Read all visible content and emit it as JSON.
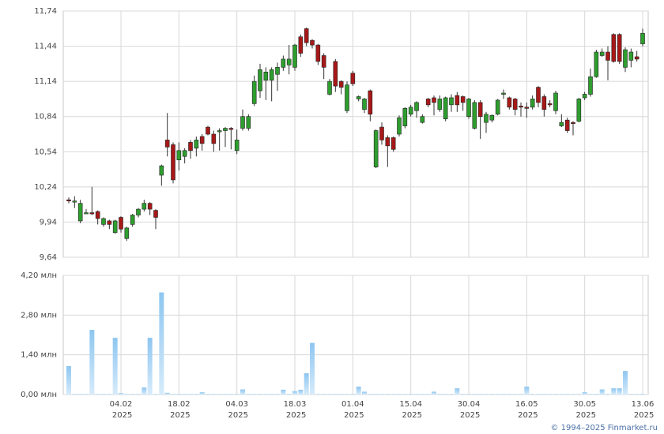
{
  "chart_data": [
    {
      "type": "candlestick",
      "up_color": "#2e9e2e",
      "down_color": "#a81818",
      "ylim": [
        9.64,
        11.74
      ],
      "yticks": [
        {
          "value": 9.64,
          "label": "9,64"
        },
        {
          "value": 9.94,
          "label": "9,94"
        },
        {
          "value": 10.24,
          "label": "10,24"
        },
        {
          "value": 10.54,
          "label": "10,54"
        },
        {
          "value": 10.84,
          "label": "10,84"
        },
        {
          "value": 11.14,
          "label": "11,14"
        },
        {
          "value": 11.44,
          "label": "11,44"
        },
        {
          "value": 11.74,
          "label": "11,74"
        }
      ],
      "grid": true,
      "open": [
        10.13,
        10.11,
        9.95,
        10.02,
        10.02,
        10.03,
        9.92,
        9.95,
        9.85,
        9.98,
        9.8,
        9.92,
        10.0,
        10.05,
        10.1,
        10.04,
        10.34,
        10.64,
        10.6,
        10.47,
        10.5,
        10.62,
        10.57,
        10.67,
        10.75,
        10.69,
        10.71,
        10.72,
        10.74,
        10.55,
        10.74,
        10.74,
        10.95,
        11.06,
        11.15,
        11.15,
        11.2,
        11.26,
        11.28,
        11.26,
        11.52,
        11.59,
        11.49,
        11.45,
        11.36,
        11.03,
        11.31,
        11.14,
        10.89,
        11.21,
        10.99,
        10.9,
        11.06,
        10.41,
        10.75,
        10.66,
        10.66,
        10.69,
        10.76,
        10.86,
        10.89,
        10.79,
        10.99,
        11.0,
        10.9,
        10.82,
        10.94,
        11.02,
        11.01,
        10.84,
        10.74,
        10.96,
        10.79,
        10.81,
        10.86,
        11.03,
        11.0,
        10.99,
        10.93,
        10.92,
        10.92,
        11.09,
        11.01,
        10.95,
        10.89,
        10.76,
        10.81,
        10.79,
        10.8,
        11.0,
        11.03,
        11.18,
        11.36,
        11.39,
        11.54,
        11.54,
        11.26,
        11.32,
        11.35,
        11.46
      ],
      "high": [
        10.15,
        10.16,
        10.13,
        10.05,
        10.24,
        10.04,
        9.98,
        9.96,
        9.96,
        9.99,
        9.9,
        10.01,
        10.06,
        10.13,
        10.11,
        10.05,
        10.43,
        10.87,
        10.62,
        10.62,
        10.57,
        10.64,
        10.67,
        10.69,
        10.76,
        10.72,
        10.74,
        10.75,
        10.75,
        10.73,
        10.9,
        10.86,
        11.19,
        11.29,
        11.26,
        11.26,
        11.3,
        11.36,
        11.45,
        11.46,
        11.54,
        11.6,
        11.5,
        11.46,
        11.38,
        11.16,
        11.33,
        11.15,
        11.14,
        11.23,
        11.02,
        11.0,
        11.07,
        10.73,
        10.79,
        10.68,
        10.67,
        10.85,
        10.92,
        10.94,
        10.97,
        10.86,
        11.0,
        11.02,
        11.02,
        11.01,
        11.03,
        11.05,
        11.02,
        11.0,
        10.98,
        10.98,
        10.88,
        10.86,
        10.99,
        11.07,
        11.01,
        11.0,
        10.96,
        10.96,
        11.02,
        11.1,
        11.03,
        10.98,
        11.06,
        10.86,
        10.83,
        10.8,
        11.0,
        11.05,
        11.25,
        11.41,
        11.42,
        11.44,
        11.55,
        11.55,
        11.43,
        11.42,
        11.4,
        11.59
      ],
      "low": [
        10.1,
        10.06,
        9.93,
        10.01,
        10.0,
        9.92,
        9.9,
        9.88,
        9.84,
        9.85,
        9.78,
        9.9,
        9.98,
        10.03,
        10.0,
        9.88,
        10.25,
        10.5,
        10.27,
        10.38,
        10.44,
        10.48,
        10.5,
        10.55,
        10.68,
        10.54,
        10.55,
        10.58,
        10.56,
        10.52,
        10.72,
        10.72,
        10.93,
        11.0,
        10.98,
        10.97,
        11.06,
        11.23,
        11.2,
        11.23,
        11.35,
        11.44,
        11.42,
        11.28,
        11.16,
        11.02,
        11.05,
        11.03,
        10.87,
        11.1,
        10.97,
        10.87,
        10.8,
        10.4,
        10.6,
        10.41,
        10.54,
        10.67,
        10.74,
        10.84,
        10.83,
        10.78,
        10.92,
        10.85,
        10.88,
        10.8,
        10.88,
        10.88,
        10.89,
        10.82,
        10.73,
        10.65,
        10.7,
        10.79,
        10.85,
        10.99,
        10.9,
        10.85,
        10.84,
        10.83,
        10.9,
        10.92,
        10.84,
        10.92,
        10.86,
        10.75,
        10.7,
        10.68,
        10.79,
        10.98,
        11.01,
        11.17,
        11.35,
        11.15,
        11.3,
        11.29,
        11.22,
        11.26,
        11.31,
        11.44
      ],
      "close": [
        10.12,
        10.12,
        10.1,
        10.02,
        10.01,
        9.97,
        9.97,
        9.92,
        9.95,
        9.88,
        9.89,
        10.0,
        10.05,
        10.1,
        10.05,
        9.98,
        10.42,
        10.58,
        10.3,
        10.55,
        10.55,
        10.55,
        10.64,
        10.61,
        10.69,
        10.61,
        10.72,
        10.74,
        10.73,
        10.64,
        10.84,
        10.84,
        11.14,
        11.24,
        11.22,
        11.24,
        11.26,
        11.33,
        11.33,
        11.45,
        11.38,
        11.47,
        11.45,
        11.31,
        11.26,
        11.14,
        11.1,
        11.09,
        11.11,
        11.12,
        11.01,
        10.99,
        10.86,
        10.72,
        10.64,
        10.59,
        10.56,
        10.83,
        10.91,
        10.92,
        10.96,
        10.84,
        10.94,
        10.96,
        10.99,
        11.0,
        11.0,
        10.94,
        10.96,
        10.99,
        10.96,
        10.84,
        10.86,
        10.85,
        10.98,
        11.04,
        10.92,
        10.9,
        10.92,
        10.91,
        10.99,
        10.96,
        10.9,
        10.94,
        11.04,
        10.79,
        10.72,
        10.78,
        10.99,
        11.03,
        11.18,
        11.39,
        11.39,
        11.32,
        11.31,
        11.31,
        11.41,
        11.39,
        11.33,
        11.55
      ]
    },
    {
      "type": "bar",
      "color": "#a9d3f4",
      "ylim": [
        0,
        4.2
      ],
      "yticks": [
        {
          "value": 0,
          "label": "0,00 млн"
        },
        {
          "value": 1.4,
          "label": "1,40 млн"
        },
        {
          "value": 2.8,
          "label": "2,80 млн"
        },
        {
          "value": 4.2,
          "label": "4,20 млн"
        }
      ],
      "grid": true,
      "categories": [
        null,
        null,
        null,
        null,
        null,
        null,
        null,
        null,
        null,
        "04.02 2025",
        null,
        null,
        null,
        null,
        null,
        null,
        null,
        null,
        null,
        "18.02 2025",
        null,
        null,
        null,
        null,
        null,
        null,
        null,
        null,
        null,
        "04.03 2025",
        null,
        null,
        null,
        null,
        null,
        null,
        null,
        null,
        null,
        "18.03 2025",
        null,
        null,
        null,
        null,
        null,
        null,
        null,
        null,
        null,
        "01.04 2025",
        null,
        null,
        null,
        null,
        null,
        null,
        null,
        null,
        null,
        "15.04 2025",
        null,
        null,
        null,
        null,
        null,
        null,
        null,
        null,
        null,
        "30.04 2025",
        null,
        null,
        null,
        null,
        null,
        null,
        null,
        null,
        null,
        "16.05 2025",
        null,
        null,
        null,
        null,
        null,
        null,
        null,
        null,
        null,
        "30.05 2025",
        null,
        null,
        null,
        null,
        null,
        null,
        null,
        null,
        null,
        "13.06 2025"
      ],
      "values": [
        1.0,
        0.02,
        0.02,
        0.02,
        2.28,
        0.02,
        0.02,
        0.02,
        2.0,
        0.05,
        0.02,
        0.02,
        0.02,
        0.25,
        2.0,
        0.02,
        3.6,
        0.06,
        0.02,
        0.02,
        0.02,
        0.02,
        0.02,
        0.08,
        0.02,
        0.02,
        0.02,
        0.02,
        0.02,
        0.02,
        0.18,
        0.02,
        0.02,
        0.02,
        0.02,
        0.02,
        0.02,
        0.17,
        0.02,
        0.12,
        0.17,
        0.75,
        1.82,
        0.02,
        0.02,
        0.02,
        0.02,
        0.02,
        0.02,
        0.02,
        0.28,
        0.1,
        0.02,
        0.02,
        0.02,
        0.02,
        0.02,
        0.02,
        0.02,
        0.02,
        0.02,
        0.02,
        0.02,
        0.1,
        0.02,
        0.02,
        0.02,
        0.22,
        0.02,
        0.02,
        0.02,
        0.02,
        0.02,
        0.02,
        0.02,
        0.02,
        0.02,
        0.02,
        0.02,
        0.28,
        0.02,
        0.02,
        0.02,
        0.02,
        0.02,
        0.02,
        0.02,
        0.02,
        0.02,
        0.08,
        0.02,
        0.02,
        0.18,
        0.02,
        0.22,
        0.22,
        0.83,
        0.02,
        0.02,
        0.02
      ]
    },
    {
      "footer": "© 1994–2025 Finmarket.ru"
    }
  ]
}
